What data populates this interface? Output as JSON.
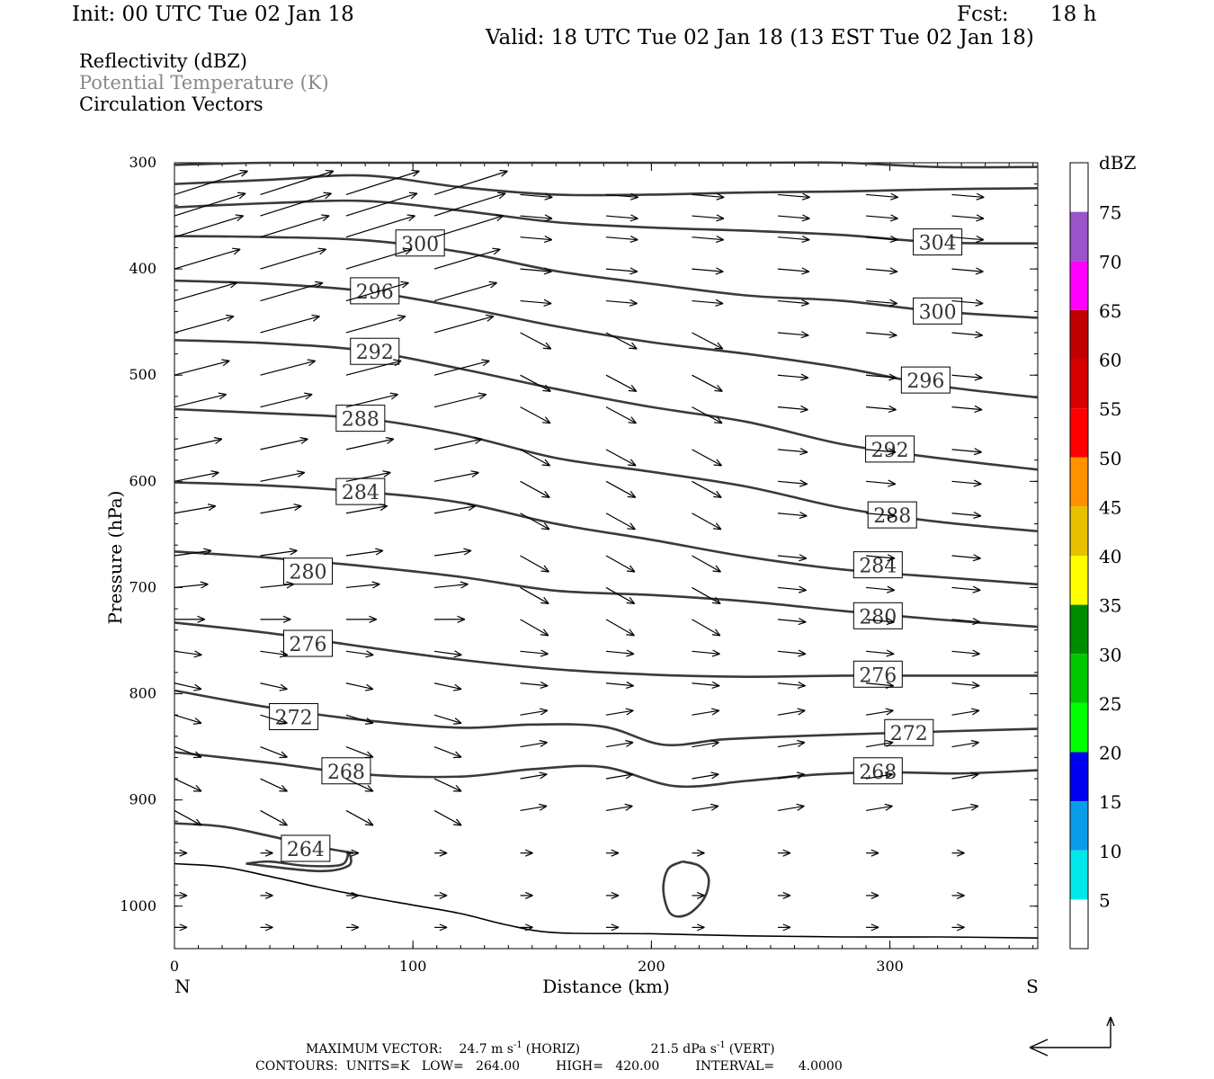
{
  "header": {
    "init": "Init: 00 UTC Tue 02 Jan 18",
    "fcst_label": "Fcst:",
    "fcst_value": "18 h",
    "valid": "Valid: 18 UTC Tue 02 Jan 18 (13 EST Tue 02 Jan 18)",
    "field1": "Reflectivity (dBZ)",
    "field2": "Potential Temperature (K)",
    "field3": "Circulation Vectors"
  },
  "chart_data": {
    "type": "cross-section",
    "xlabel": "Distance (km)",
    "ylabel": "Pressure (hPa)",
    "xlim": [
      0,
      362
    ],
    "ylim": [
      1040,
      300
    ],
    "x_ticks": [
      "0",
      "100",
      "200",
      "300"
    ],
    "y_ticks": [
      "300",
      "400",
      "500",
      "600",
      "700",
      "800",
      "900",
      "1000"
    ],
    "left_end_label": "N",
    "right_end_label": "S",
    "contour_color": "#3a3a3a",
    "isentropes": [
      {
        "label": "264",
        "label_at": [
          55,
          946
        ],
        "points": [
          [
            0,
            922
          ],
          [
            20,
            925
          ],
          [
            40,
            934
          ],
          [
            60,
            944
          ],
          [
            75,
            950
          ]
        ]
      },
      {
        "label": "268",
        "label_at": [
          72,
          873
        ],
        "points": [
          [
            0,
            855
          ],
          [
            40,
            865
          ],
          [
            80,
            876
          ],
          [
            120,
            878
          ],
          [
            150,
            871
          ],
          [
            180,
            869
          ],
          [
            210,
            887
          ],
          [
            240,
            882
          ],
          [
            270,
            876
          ],
          [
            300,
            874
          ],
          [
            330,
            875
          ],
          [
            362,
            872
          ]
        ]
      },
      {
        "label": "268",
        "label_at": [
          295,
          873
        ],
        "points": []
      },
      {
        "label": "272",
        "label_at": [
          50,
          822
        ],
        "points": [
          [
            0,
            797
          ],
          [
            40,
            813
          ],
          [
            80,
            825
          ],
          [
            120,
            832
          ],
          [
            150,
            829
          ],
          [
            180,
            831
          ],
          [
            205,
            848
          ],
          [
            230,
            843
          ],
          [
            260,
            840
          ],
          [
            300,
            837
          ],
          [
            330,
            835
          ],
          [
            362,
            833
          ]
        ]
      },
      {
        "label": "272",
        "label_at": [
          308,
          837
        ],
        "points": []
      },
      {
        "label": "276",
        "label_at": [
          56,
          753
        ],
        "points": [
          [
            0,
            733
          ],
          [
            40,
            743
          ],
          [
            80,
            756
          ],
          [
            120,
            768
          ],
          [
            160,
            777
          ],
          [
            200,
            782
          ],
          [
            240,
            784
          ],
          [
            280,
            783
          ],
          [
            320,
            783
          ],
          [
            362,
            783
          ]
        ]
      },
      {
        "label": "276",
        "label_at": [
          295,
          782
        ],
        "points": []
      },
      {
        "label": "280",
        "label_at": [
          56,
          685
        ],
        "points": [
          [
            0,
            666
          ],
          [
            40,
            672
          ],
          [
            80,
            680
          ],
          [
            120,
            690
          ],
          [
            160,
            703
          ],
          [
            200,
            707
          ],
          [
            240,
            713
          ],
          [
            280,
            722
          ],
          [
            320,
            730
          ],
          [
            362,
            737
          ]
        ]
      },
      {
        "label": "280",
        "label_at": [
          295,
          727
        ],
        "points": []
      },
      {
        "label": "284",
        "label_at": [
          78,
          610
        ],
        "points": [
          [
            0,
            601
          ],
          [
            40,
            604
          ],
          [
            80,
            610
          ],
          [
            120,
            620
          ],
          [
            160,
            640
          ],
          [
            200,
            655
          ],
          [
            240,
            671
          ],
          [
            280,
            683
          ],
          [
            320,
            690
          ],
          [
            362,
            697
          ]
        ]
      },
      {
        "label": "284",
        "label_at": [
          295,
          679
        ],
        "points": []
      },
      {
        "label": "288",
        "label_at": [
          78,
          541
        ],
        "points": [
          [
            0,
            532
          ],
          [
            40,
            536
          ],
          [
            80,
            541
          ],
          [
            120,
            556
          ],
          [
            160,
            578
          ],
          [
            200,
            591
          ],
          [
            240,
            605
          ],
          [
            280,
            625
          ],
          [
            320,
            638
          ],
          [
            362,
            647
          ]
        ]
      },
      {
        "label": "288",
        "label_at": [
          301,
          632
        ],
        "points": []
      },
      {
        "label": "292",
        "label_at": [
          84,
          478
        ],
        "points": [
          [
            0,
            467
          ],
          [
            40,
            470
          ],
          [
            80,
            477
          ],
          [
            120,
            494
          ],
          [
            160,
            513
          ],
          [
            200,
            530
          ],
          [
            240,
            544
          ],
          [
            280,
            565
          ],
          [
            320,
            578
          ],
          [
            362,
            589
          ]
        ]
      },
      {
        "label": "292",
        "label_at": [
          300,
          570
        ],
        "points": []
      },
      {
        "label": "296",
        "label_at": [
          84,
          421
        ],
        "points": [
          [
            0,
            411
          ],
          [
            40,
            414
          ],
          [
            80,
            421
          ],
          [
            120,
            436
          ],
          [
            160,
            454
          ],
          [
            200,
            469
          ],
          [
            240,
            480
          ],
          [
            280,
            493
          ],
          [
            320,
            510
          ],
          [
            362,
            521
          ]
        ]
      },
      {
        "label": "296",
        "label_at": [
          315,
          505
        ],
        "points": []
      },
      {
        "label": "300",
        "label_at": [
          103,
          376
        ],
        "points": [
          [
            0,
            369
          ],
          [
            40,
            370
          ],
          [
            80,
            373
          ],
          [
            120,
            384
          ],
          [
            160,
            402
          ],
          [
            200,
            414
          ],
          [
            240,
            425
          ],
          [
            280,
            430
          ],
          [
            320,
            440
          ],
          [
            362,
            446
          ]
        ]
      },
      {
        "label": "300",
        "label_at": [
          320,
          440
        ],
        "points": []
      },
      {
        "label": "304",
        "label_at": [
          320,
          375
        ],
        "points": [
          [
            0,
            342
          ],
          [
            40,
            338
          ],
          [
            80,
            336
          ],
          [
            120,
            345
          ],
          [
            160,
            356
          ],
          [
            200,
            361
          ],
          [
            240,
            364
          ],
          [
            280,
            368
          ],
          [
            320,
            375
          ],
          [
            362,
            376
          ]
        ]
      },
      {
        "label": "",
        "label_at": null,
        "points": [
          [
            0,
            320
          ],
          [
            40,
            316
          ],
          [
            80,
            312
          ],
          [
            120,
            323
          ],
          [
            160,
            330
          ],
          [
            200,
            330
          ],
          [
            240,
            328
          ],
          [
            280,
            327
          ],
          [
            320,
            325
          ],
          [
            362,
            324
          ]
        ]
      },
      {
        "label": "",
        "label_at": null,
        "points": [
          [
            0,
            302
          ],
          [
            40,
            300
          ],
          [
            120,
            300
          ],
          [
            240,
            300
          ],
          [
            280,
            300
          ],
          [
            320,
            304
          ],
          [
            362,
            304
          ]
        ]
      }
    ],
    "closed_contours": [
      {
        "points": [
          [
            30,
            960
          ],
          [
            40,
            958
          ],
          [
            55,
            962
          ],
          [
            70,
            961
          ],
          [
            73,
            950
          ],
          [
            73,
            962
          ],
          [
            60,
            967
          ],
          [
            30,
            960
          ]
        ]
      },
      {
        "points": [
          [
            213,
            958
          ],
          [
            220,
            962
          ],
          [
            224,
            974
          ],
          [
            222,
            993
          ],
          [
            215,
            1008
          ],
          [
            208,
            1007
          ],
          [
            205,
            985
          ],
          [
            207,
            965
          ],
          [
            213,
            958
          ]
        ]
      }
    ],
    "surface": [
      [
        0,
        960
      ],
      [
        20,
        963
      ],
      [
        40,
        972
      ],
      [
        60,
        982
      ],
      [
        80,
        991
      ],
      [
        100,
        999
      ],
      [
        120,
        1007
      ],
      [
        140,
        1018
      ],
      [
        160,
        1025
      ],
      [
        200,
        1026
      ],
      [
        240,
        1028
      ],
      [
        280,
        1029
      ],
      [
        320,
        1029
      ],
      [
        362,
        1030
      ]
    ],
    "vectors": {
      "x": [
        0,
        36,
        72,
        109,
        145,
        181,
        217,
        253,
        290,
        326
      ],
      "p": [
        300,
        330,
        350,
        370,
        400,
        430,
        460,
        500,
        530,
        570,
        600,
        630,
        670,
        700,
        730,
        760,
        790,
        820,
        850,
        880,
        910,
        950,
        990,
        1020
      ],
      "u_scale_note": "unitless"
    },
    "colorbar": {
      "title": "dBZ",
      "levels": [
        "5",
        "10",
        "15",
        "20",
        "25",
        "30",
        "35",
        "40",
        "45",
        "50",
        "55",
        "60",
        "65",
        "70",
        "75"
      ],
      "colors": [
        "#ffffff",
        "#00e8e8",
        "#0a9be9",
        "#0000f0",
        "#00ff00",
        "#00c800",
        "#008c00",
        "#ffff00",
        "#e7c000",
        "#ff9000",
        "#ff0000",
        "#d60000",
        "#c00000",
        "#ff00ff",
        "#9955c9",
        "#ffffff"
      ]
    }
  },
  "footer": {
    "max_vector_label": "MAXIMUM VECTOR:",
    "max_vector_horiz": "24.7 m s",
    "horiz_suffix": "(HORIZ)",
    "max_vector_vert": "21.5 dPa s",
    "vert_suffix": "(VERT)",
    "superscript": "-1",
    "contours": "CONTOURS:  UNITS=K   LOW=   264.00         HIGH=   420.00         INTERVAL=      4.0000"
  }
}
